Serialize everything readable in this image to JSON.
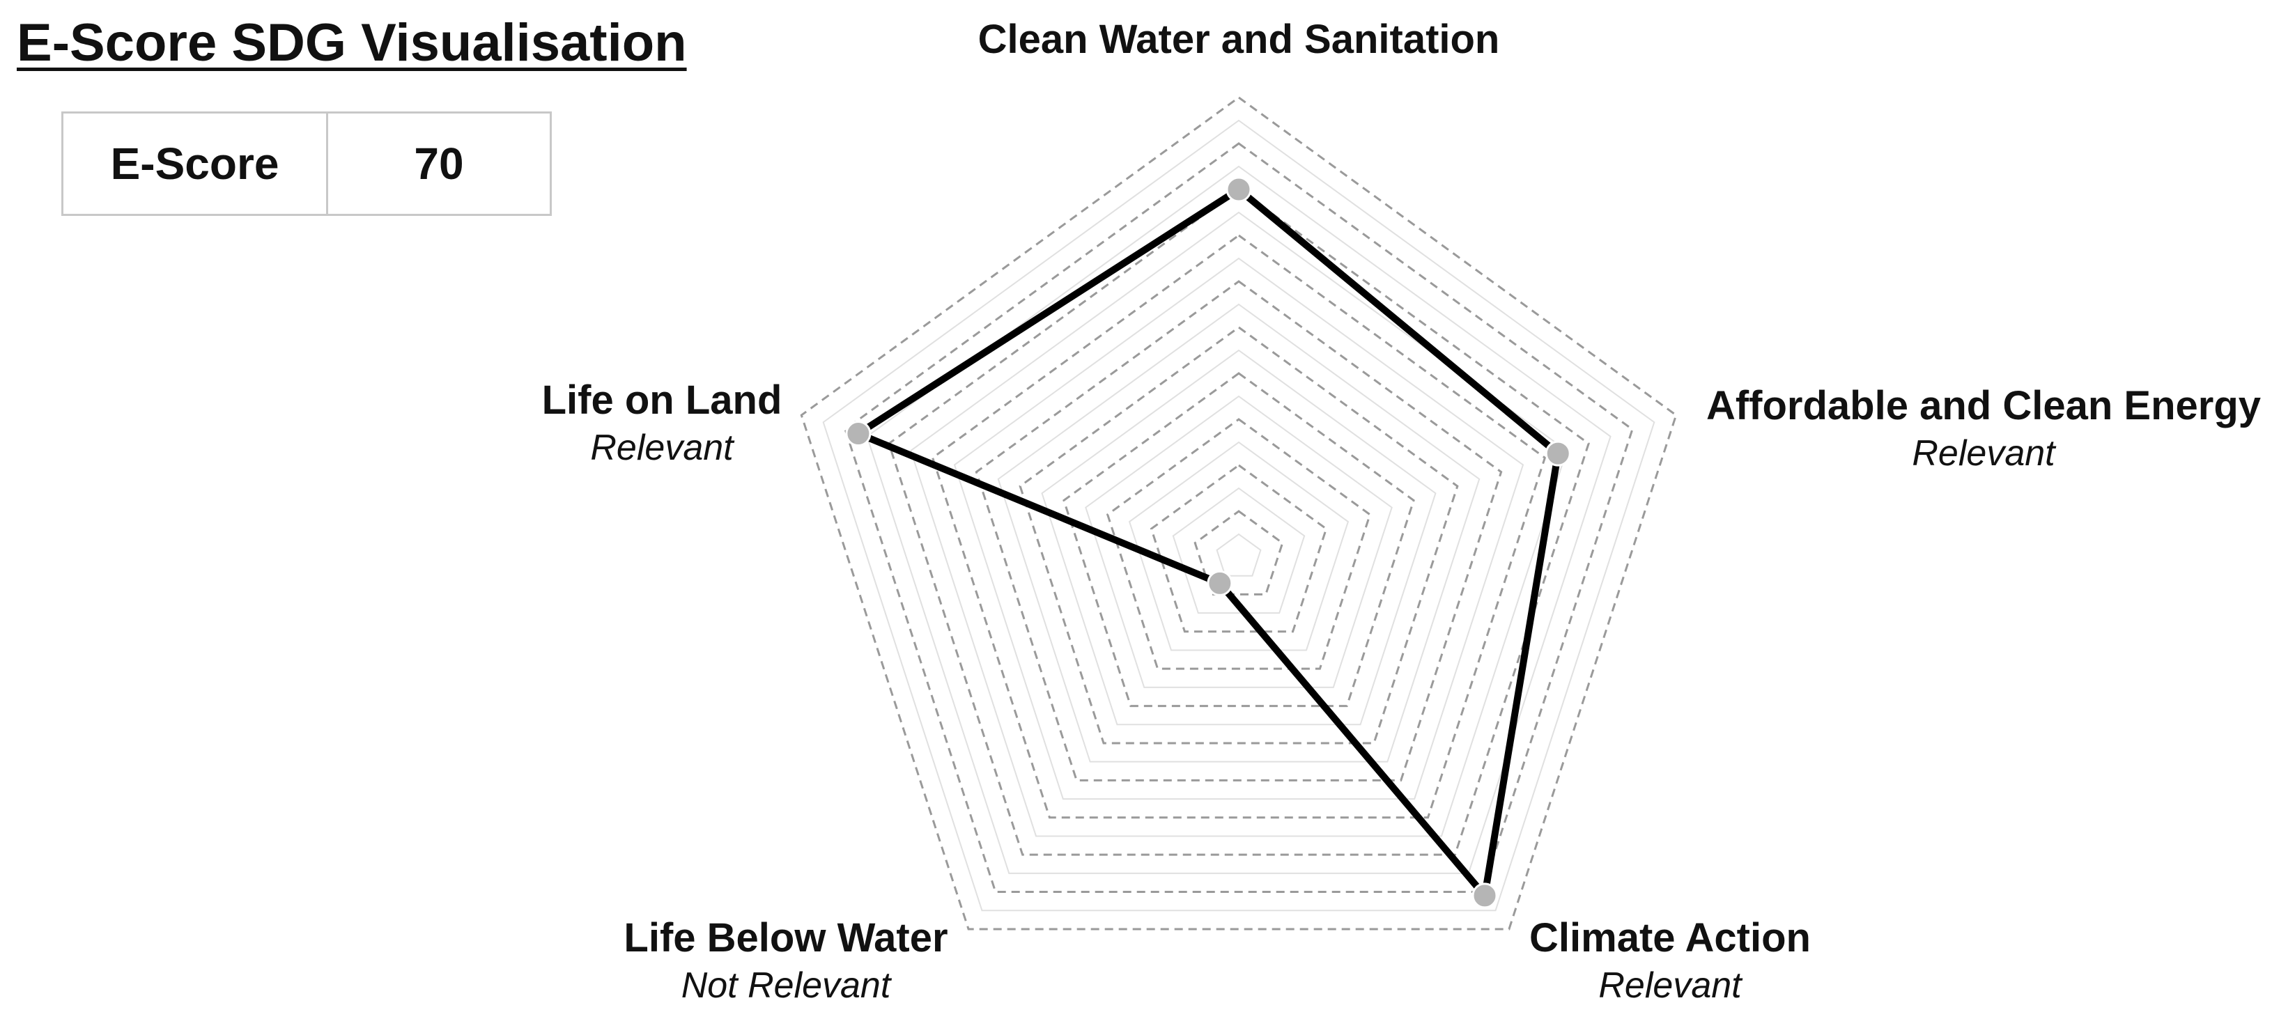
{
  "title": "E-Score SDG Visualisation",
  "score_table": {
    "label": "E-Score",
    "value": "70"
  },
  "chart_data": {
    "type": "radar",
    "categories": [
      "Clean Water and Sanitation",
      "Affordable and Clean Energy",
      "Climate Action",
      "Life Below Water",
      "Life on Land"
    ],
    "relevance": [
      "",
      "Relevant",
      "Relevant",
      "Not Relevant",
      "Relevant"
    ],
    "values": [
      80,
      73,
      91,
      7,
      87
    ],
    "range": [
      0,
      100
    ],
    "rings": 20,
    "colors": {
      "line": "#000000",
      "marker": "#b5b5b5",
      "grid_major": "#9a9a9a",
      "grid_minor": "#e0e0e0"
    }
  }
}
